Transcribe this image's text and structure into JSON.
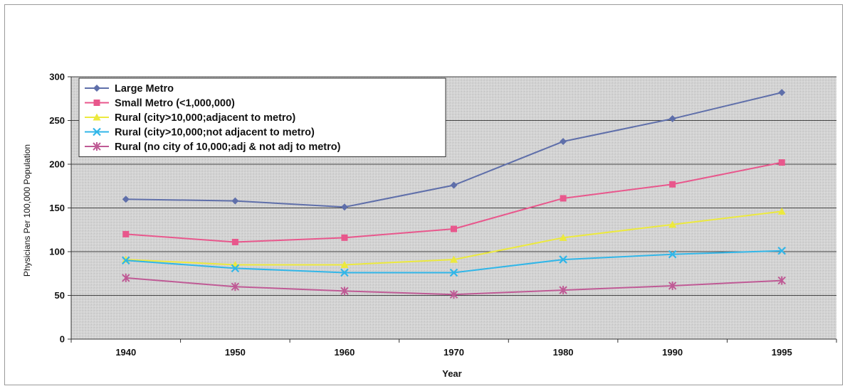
{
  "chart_data": {
    "type": "line",
    "title": "",
    "xlabel": "Year",
    "ylabel": "Physicians Per 100,000 Population",
    "x": [
      "1940",
      "1950",
      "1960",
      "1970",
      "1980",
      "1990",
      "1995"
    ],
    "ylim": [
      0,
      300
    ],
    "yticks": [
      0,
      50,
      100,
      150,
      200,
      250,
      300
    ],
    "grid": "horizontal",
    "legend_position": "top-left",
    "series": [
      {
        "name": "Large Metro",
        "color": "#5f6faa",
        "marker": "diamond",
        "values": [
          160,
          158,
          151,
          176,
          226,
          252,
          282
        ]
      },
      {
        "name": "Small Metro (<1,000,000)",
        "color": "#e8578c",
        "marker": "square",
        "values": [
          120,
          111,
          116,
          126,
          161,
          177,
          202
        ]
      },
      {
        "name": "Rural (city>10,000;adjacent to metro)",
        "color": "#ece93e",
        "marker": "triangle",
        "values": [
          91,
          85,
          85,
          91,
          116,
          131,
          146
        ]
      },
      {
        "name": "Rural (city>10,000;not adjacent to metro)",
        "color": "#31b6e8",
        "marker": "x",
        "values": [
          90,
          81,
          76,
          76,
          91,
          97,
          101
        ]
      },
      {
        "name": "Rural (no city of 10,000;adj & not adj to metro)",
        "color": "#bf5a95",
        "marker": "star",
        "values": [
          70,
          60,
          55,
          51,
          56,
          61,
          67
        ]
      }
    ]
  }
}
